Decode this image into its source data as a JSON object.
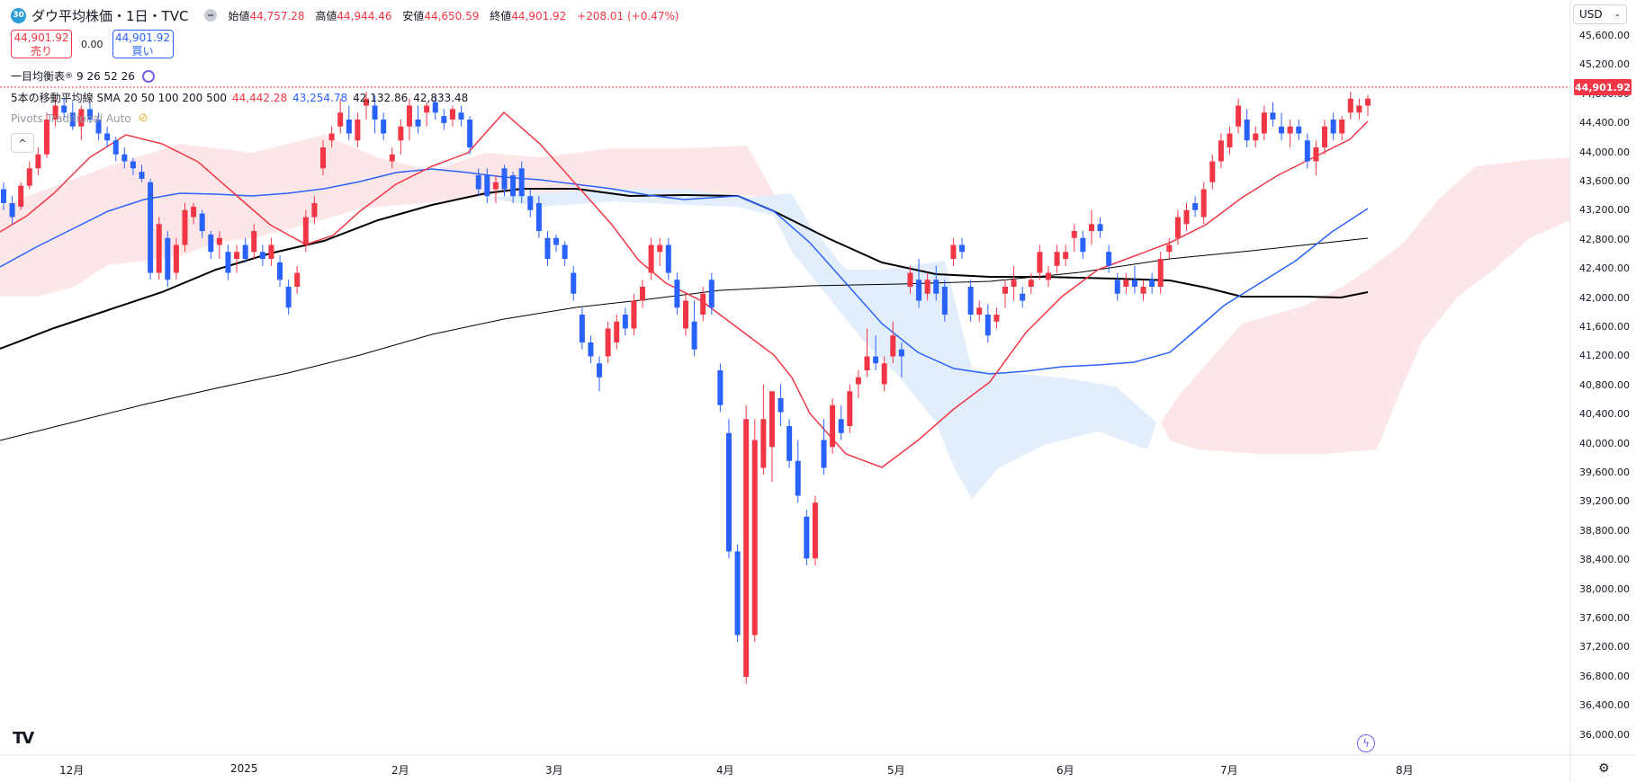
{
  "header": {
    "symbol_badge": "30",
    "title": "ダウ平均株価・1日・TVC",
    "ohlc": {
      "open_label": "始値",
      "open": "44,757.28",
      "high_label": "高値",
      "high": "44,944.46",
      "low_label": "安値",
      "low": "44,650.59",
      "close_label": "終値",
      "close": "44,901.92",
      "change": "+208.01 (+0.47%)"
    }
  },
  "trade": {
    "sell_price": "44,901.92",
    "sell_label": "売り",
    "spread": "0.00",
    "buy_price": "44,901.92",
    "buy_label": "買い"
  },
  "indicators": {
    "ichimoku_label": "一目均衡表",
    "ichimoku_params": "9 26 52 26",
    "sma_label": "5本の移動平均線",
    "sma_type": "SMA",
    "sma_params": "20 50 100 200 500",
    "sma_values": [
      "44,442.28",
      "43,254.78",
      "42,132.86",
      "42,833.48"
    ],
    "pivots_label": "Pivots Traditional Auto"
  },
  "price_axis": {
    "currency": "USD",
    "labels": [
      "45,600.00",
      "45,200.00",
      "44,800.00",
      "44,400.00",
      "44,000.00",
      "43,600.00",
      "43,200.00",
      "42,800.00",
      "42,400.00",
      "42,000.00",
      "41,600.00",
      "41,200.00",
      "40,800.00",
      "40,400.00",
      "40,000.00",
      "39,600.00",
      "39,200.00",
      "38,800.00",
      "38,400.00",
      "38,000.00",
      "37,600.00",
      "37,200.00",
      "36,800.00",
      "36,400.00",
      "36,000.00"
    ],
    "current_price": "44,901.92"
  },
  "time_axis": {
    "labels": [
      "12月",
      "2025",
      "2月",
      "3月",
      "4月",
      "5月",
      "6月",
      "7月",
      "8月"
    ]
  },
  "colors": {
    "up": "#f23645",
    "down": "#2962ff",
    "sma20": "#f23645",
    "sma50": "#2962ff",
    "sma100": "#000000",
    "sma200": "#000000",
    "kumo_bull": "#fde6e7",
    "kumo_bear": "#e3eefc"
  },
  "chart_data": {
    "type": "candlestick",
    "ylim": [
      35800,
      45800
    ],
    "candles": [
      [
        43600,
        43700,
        43300,
        43400
      ],
      [
        43400,
        43500,
        43100,
        43200
      ],
      [
        43350,
        43700,
        43300,
        43650
      ],
      [
        43650,
        44000,
        43600,
        43900
      ],
      [
        43900,
        44200,
        43800,
        44100
      ],
      [
        44100,
        44700,
        44050,
        44600
      ],
      [
        44600,
        44950,
        44500,
        44800
      ],
      [
        44800,
        44900,
        44600,
        44700
      ],
      [
        44700,
        44850,
        44450,
        44500
      ],
      [
        44500,
        44800,
        44300,
        44750
      ],
      [
        44750,
        44850,
        44550,
        44600
      ],
      [
        44600,
        44700,
        44300,
        44400
      ],
      [
        44400,
        44500,
        44200,
        44300
      ],
      [
        44300,
        44350,
        44000,
        44100
      ],
      [
        44100,
        44200,
        43900,
        44000
      ],
      [
        44000,
        44050,
        43800,
        43900
      ],
      [
        43850,
        43950,
        43700,
        43750
      ],
      [
        43700,
        43750,
        42300,
        42400
      ],
      [
        42400,
        43200,
        42300,
        43100
      ],
      [
        42900,
        43000,
        42200,
        42300
      ],
      [
        42400,
        42900,
        42300,
        42800
      ],
      [
        42800,
        43400,
        42700,
        43300
      ],
      [
        43200,
        43400,
        43100,
        43350
      ],
      [
        43250,
        43300,
        42900,
        43000
      ],
      [
        42950,
        43000,
        42600,
        42700
      ],
      [
        42800,
        43000,
        42600,
        42900
      ],
      [
        42700,
        42800,
        42300,
        42400
      ],
      [
        42600,
        42800,
        42400,
        42700
      ],
      [
        42800,
        42900,
        42550,
        42600
      ],
      [
        42700,
        43100,
        42600,
        43000
      ],
      [
        42700,
        42800,
        42500,
        42600
      ],
      [
        42600,
        42900,
        42500,
        42800
      ],
      [
        42550,
        42650,
        42200,
        42300
      ],
      [
        42200,
        42300,
        41800,
        41900
      ],
      [
        42200,
        42500,
        42100,
        42400
      ],
      [
        42800,
        43300,
        42700,
        43200
      ],
      [
        43200,
        43500,
        43100,
        43400
      ],
      [
        43900,
        44300,
        43800,
        44200
      ],
      [
        44300,
        44500,
        44200,
        44400
      ],
      [
        44500,
        44900,
        44400,
        44700
      ],
      [
        44600,
        44800,
        44300,
        44400
      ],
      [
        44300,
        44700,
        44200,
        44600
      ],
      [
        44800,
        45000,
        44600,
        44900
      ],
      [
        44800,
        44950,
        44400,
        44600
      ],
      [
        44600,
        44700,
        44300,
        44400
      ],
      [
        44000,
        44200,
        43900,
        44100
      ],
      [
        44300,
        44600,
        44100,
        44500
      ],
      [
        44500,
        44900,
        44300,
        44800
      ],
      [
        44600,
        44800,
        44400,
        44500
      ],
      [
        44700,
        44850,
        44500,
        44800
      ],
      [
        44850,
        44950,
        44600,
        44700
      ],
      [
        44650,
        44750,
        44450,
        44550
      ],
      [
        44600,
        44800,
        44500,
        44750
      ],
      [
        44700,
        44800,
        44500,
        44600
      ],
      [
        44600,
        44650,
        44100,
        44200
      ],
      [
        43800,
        43900,
        43500,
        43600
      ],
      [
        43800,
        43900,
        43400,
        43500
      ],
      [
        43600,
        43800,
        43400,
        43700
      ],
      [
        43900,
        43950,
        43500,
        43600
      ],
      [
        43800,
        43850,
        43400,
        43500
      ],
      [
        43900,
        44000,
        43400,
        43500
      ],
      [
        43500,
        43600,
        43200,
        43300
      ],
      [
        43400,
        43500,
        42900,
        43000
      ],
      [
        42900,
        43000,
        42500,
        42600
      ],
      [
        42900,
        42950,
        42700,
        42800
      ],
      [
        42800,
        42850,
        42500,
        42600
      ],
      [
        42400,
        42500,
        42000,
        42100
      ],
      [
        41800,
        41900,
        41300,
        41400
      ],
      [
        41400,
        41500,
        41100,
        41200
      ],
      [
        41100,
        41200,
        40700,
        40900
      ],
      [
        41200,
        41700,
        41100,
        41600
      ],
      [
        41400,
        41800,
        41300,
        41700
      ],
      [
        41800,
        41900,
        41500,
        41600
      ],
      [
        41600,
        42100,
        41500,
        42000
      ],
      [
        42000,
        42300,
        41900,
        42200
      ],
      [
        42400,
        42900,
        42300,
        42800
      ],
      [
        42700,
        42900,
        42500,
        42800
      ],
      [
        42800,
        42900,
        42300,
        42400
      ],
      [
        42300,
        42400,
        41800,
        41900
      ],
      [
        41600,
        42100,
        41500,
        42000
      ],
      [
        41700,
        42000,
        41200,
        41300
      ],
      [
        41800,
        42200,
        41700,
        42100
      ],
      [
        42300,
        42400,
        41800,
        41900
      ],
      [
        41000,
        41100,
        40400,
        40500
      ],
      [
        40100,
        40300,
        38300,
        38400
      ],
      [
        38400,
        38500,
        37100,
        37200
      ],
      [
        36600,
        40500,
        36500,
        40300
      ],
      [
        37200,
        40300,
        37100,
        40000
      ],
      [
        39600,
        40800,
        39500,
        40300
      ],
      [
        39900,
        40600,
        39400,
        40700
      ],
      [
        40600,
        40800,
        40200,
        40400
      ],
      [
        40200,
        40300,
        39600,
        39700
      ],
      [
        39700,
        40000,
        39100,
        39200
      ],
      [
        38900,
        39000,
        38200,
        38300
      ],
      [
        38300,
        39200,
        38200,
        39100
      ],
      [
        40000,
        40300,
        39500,
        39600
      ],
      [
        39900,
        40600,
        39800,
        40500
      ],
      [
        40300,
        40500,
        40000,
        40100
      ],
      [
        40200,
        40800,
        40100,
        40700
      ],
      [
        40800,
        41000,
        40600,
        40900
      ],
      [
        41000,
        41600,
        40900,
        41200
      ],
      [
        41200,
        41500,
        41000,
        41100
      ],
      [
        40800,
        41200,
        40700,
        41100
      ],
      [
        41200,
        41700,
        41100,
        41500
      ],
      [
        41300,
        41400,
        40900,
        41200
      ],
      [
        42200,
        42500,
        42100,
        42400
      ],
      [
        42300,
        42600,
        41900,
        42000
      ],
      [
        42100,
        42400,
        42000,
        42300
      ],
      [
        42300,
        42500,
        42000,
        42100
      ],
      [
        42200,
        42300,
        41700,
        41800
      ],
      [
        42600,
        42900,
        42500,
        42800
      ],
      [
        42800,
        42900,
        42600,
        42700
      ],
      [
        42200,
        42300,
        41700,
        41800
      ],
      [
        41800,
        42000,
        41700,
        41900
      ],
      [
        41800,
        41950,
        41400,
        41500
      ],
      [
        41700,
        41900,
        41600,
        41800
      ],
      [
        42100,
        42300,
        41900,
        42200
      ],
      [
        42200,
        42500,
        42000,
        42300
      ],
      [
        42100,
        42200,
        41900,
        42000
      ],
      [
        42200,
        42400,
        42100,
        42300
      ],
      [
        42400,
        42800,
        42300,
        42700
      ],
      [
        42300,
        42500,
        42200,
        42400
      ],
      [
        42500,
        42800,
        42400,
        42700
      ],
      [
        42600,
        42800,
        42500,
        42700
      ],
      [
        42900,
        43100,
        42700,
        43000
      ],
      [
        42900,
        43000,
        42600,
        42700
      ],
      [
        43000,
        43300,
        42800,
        43100
      ],
      [
        43100,
        43200,
        42900,
        43000
      ],
      [
        42700,
        42800,
        42400,
        42500
      ],
      [
        42300,
        42400,
        42000,
        42100
      ],
      [
        42200,
        42400,
        42100,
        42300
      ],
      [
        42300,
        42500,
        42100,
        42200
      ],
      [
        42100,
        42300,
        42000,
        42200
      ],
      [
        42300,
        42400,
        42100,
        42200
      ],
      [
        42200,
        42700,
        42100,
        42600
      ],
      [
        42700,
        42900,
        42600,
        42800
      ],
      [
        42900,
        43300,
        42800,
        43200
      ],
      [
        43100,
        43400,
        43000,
        43300
      ],
      [
        43400,
        43500,
        43200,
        43300
      ],
      [
        43200,
        43700,
        43100,
        43600
      ],
      [
        43700,
        44100,
        43600,
        44000
      ],
      [
        44000,
        44400,
        43900,
        44300
      ],
      [
        44200,
        44500,
        44100,
        44400
      ],
      [
        44500,
        44900,
        44400,
        44800
      ],
      [
        44600,
        44750,
        44200,
        44300
      ],
      [
        44300,
        44500,
        44200,
        44400
      ],
      [
        44400,
        44800,
        44300,
        44700
      ],
      [
        44700,
        44850,
        44500,
        44600
      ],
      [
        44500,
        44700,
        44300,
        44400
      ],
      [
        44400,
        44600,
        44200,
        44500
      ],
      [
        44500,
        44600,
        44300,
        44400
      ],
      [
        44300,
        44400,
        43900,
        44000
      ],
      [
        44000,
        44300,
        43800,
        44200
      ],
      [
        44200,
        44600,
        44100,
        44500
      ],
      [
        44600,
        44700,
        44300,
        44400
      ],
      [
        44400,
        44650,
        44300,
        44600
      ],
      [
        44700,
        45000,
        44600,
        44900
      ],
      [
        44700,
        44900,
        44600,
        44800
      ],
      [
        44800,
        44950,
        44650,
        44900
      ]
    ]
  }
}
